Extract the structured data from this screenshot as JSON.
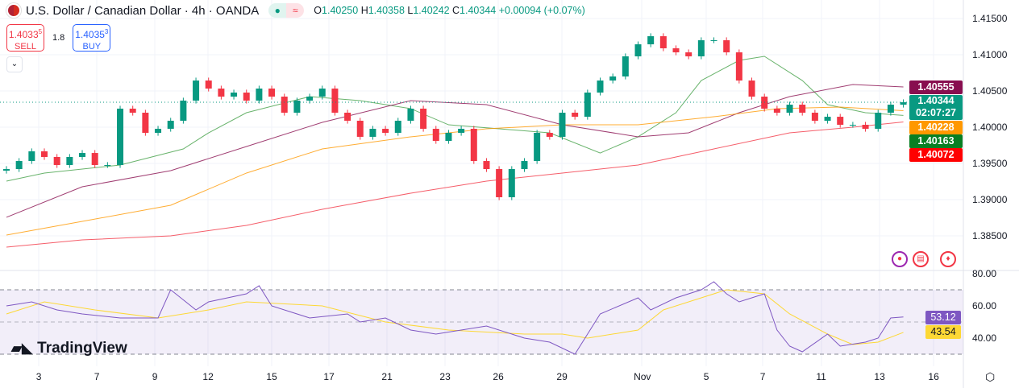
{
  "header": {
    "title": "U.S. Dollar / Canadian Dollar · 4h · OANDA",
    "open_label": "O",
    "open": "1.40250",
    "high_label": "H",
    "high": "1.40358",
    "low_label": "L",
    "low": "1.40242",
    "close_label": "C",
    "close": "1.40344",
    "change": "+0.00094 (+0.07%)",
    "status_icon": "market-open-dot",
    "delay_icon": "approx-icon"
  },
  "trade": {
    "sell_price": "1.4033",
    "sell_sup": "5",
    "sell_label": "SELL",
    "spread": "1.8",
    "buy_price": "1.4035",
    "buy_sup": "3",
    "buy_label": "BUY"
  },
  "branding": {
    "logo": "TradingView"
  },
  "colors": {
    "up": "#089981",
    "down": "#f23645",
    "ma_green": "#43a047",
    "ma_maroon": "#880e4f",
    "ma_orange": "#ff9800",
    "ma_red": "#f23645",
    "rsi": "#7e57c2",
    "rsi_ma": "#fdd835"
  },
  "chart_data": {
    "type": "candlestick",
    "price_axis": {
      "ticks": [
        "1.41500",
        "1.41000",
        "1.40500",
        "1.40000",
        "1.39500",
        "1.39000",
        "1.38500"
      ],
      "range": [
        1.381,
        1.4175
      ]
    },
    "x_ticks": [
      "3",
      "7",
      "9",
      "12",
      "15",
      "17",
      "21",
      "23",
      "26",
      "29",
      "Nov",
      "5",
      "7",
      "11",
      "13",
      "16"
    ],
    "first_open": 1.394,
    "closes": [
      1.39422,
      1.39533,
      1.39667,
      1.39589,
      1.39478,
      1.39589,
      1.39644,
      1.39478,
      1.39478,
      1.40256,
      1.402,
      1.39922,
      1.39978,
      1.40089,
      1.40367,
      1.40644,
      1.40533,
      1.40422,
      1.40478,
      1.40367,
      1.40533,
      1.40422,
      1.402,
      1.40367,
      1.40422,
      1.40533,
      1.402,
      1.40089,
      1.39867,
      1.39978,
      1.39922,
      1.40089,
      1.40256,
      1.39978,
      1.39811,
      1.39922,
      1.39978,
      1.39533,
      1.39422,
      1.39033,
      1.39422,
      1.39533,
      1.39922,
      1.39867,
      1.402,
      1.40144,
      1.40478,
      1.40644,
      1.407,
      1.40978,
      1.41144,
      1.41256,
      1.41089,
      1.41033,
      1.40978,
      1.412,
      1.412,
      1.41033,
      1.40644,
      1.40422,
      1.40256,
      1.402,
      1.40311,
      1.402,
      1.40089,
      1.40144,
      1.40033,
      1.40033,
      1.39978,
      1.402,
      1.40311,
      1.40344
    ],
    "moving_averages": [
      {
        "color": "#43a047",
        "last": "1.40163",
        "points": [
          [
            0,
            1.39256
          ],
          [
            3,
            1.39367
          ],
          [
            9,
            1.39478
          ],
          [
            14,
            1.397
          ],
          [
            16,
            1.39922
          ],
          [
            19,
            1.402
          ],
          [
            24,
            1.40422
          ],
          [
            28,
            1.40367
          ],
          [
            32,
            1.40256
          ],
          [
            35,
            1.40033
          ],
          [
            39,
            1.39978
          ],
          [
            43,
            1.39922
          ],
          [
            47,
            1.39644
          ],
          [
            50,
            1.39867
          ],
          [
            53,
            1.402
          ],
          [
            55,
            1.40644
          ],
          [
            58,
            1.40922
          ],
          [
            60,
            1.40978
          ],
          [
            63,
            1.40644
          ],
          [
            65,
            1.40311
          ],
          [
            68,
            1.402
          ],
          [
            71,
            1.40163
          ]
        ]
      },
      {
        "color": "#880e4f",
        "last": "1.40555",
        "points": [
          [
            0,
            1.38756
          ],
          [
            6,
            1.39178
          ],
          [
            13,
            1.394
          ],
          [
            19,
            1.39733
          ],
          [
            25,
            1.40067
          ],
          [
            32,
            1.40367
          ],
          [
            38,
            1.40311
          ],
          [
            44,
            1.40033
          ],
          [
            50,
            1.39867
          ],
          [
            54,
            1.39922
          ],
          [
            58,
            1.402
          ],
          [
            62,
            1.40422
          ],
          [
            67,
            1.40589
          ],
          [
            71,
            1.40555
          ]
        ]
      },
      {
        "color": "#ff9800",
        "last": "1.40228",
        "points": [
          [
            0,
            1.38511
          ],
          [
            6,
            1.387
          ],
          [
            13,
            1.38922
          ],
          [
            19,
            1.39367
          ],
          [
            25,
            1.397
          ],
          [
            32,
            1.39867
          ],
          [
            38,
            1.39978
          ],
          [
            44,
            1.40033
          ],
          [
            50,
            1.40033
          ],
          [
            56,
            1.40144
          ],
          [
            61,
            1.40256
          ],
          [
            66,
            1.40278
          ],
          [
            71,
            1.40228
          ]
        ]
      },
      {
        "color": "#f23645",
        "last": "1.40072",
        "points": [
          [
            0,
            1.38344
          ],
          [
            6,
            1.38444
          ],
          [
            13,
            1.385
          ],
          [
            19,
            1.38644
          ],
          [
            25,
            1.38867
          ],
          [
            32,
            1.39089
          ],
          [
            38,
            1.39256
          ],
          [
            44,
            1.39367
          ],
          [
            50,
            1.39478
          ],
          [
            56,
            1.397
          ],
          [
            62,
            1.39922
          ],
          [
            67,
            1.4
          ],
          [
            71,
            1.40072
          ]
        ]
      }
    ],
    "last_price": {
      "value": "1.40344",
      "countdown": "02:07:27"
    },
    "rsi": {
      "ticks": [
        "80.00",
        "60.00",
        "40.00"
      ],
      "bands": [
        70,
        50,
        30
      ],
      "last": "53.12",
      "ma_last": "43.54",
      "values": [
        [
          0,
          60
        ],
        [
          2,
          62.5
        ],
        [
          4,
          57.5
        ],
        [
          6,
          55
        ],
        [
          9,
          52.5
        ],
        [
          12,
          52.5
        ],
        [
          13,
          70
        ],
        [
          15,
          57.5
        ],
        [
          16,
          62.5
        ],
        [
          19,
          67.5
        ],
        [
          20,
          72.5
        ],
        [
          21,
          60
        ],
        [
          24,
          52.5
        ],
        [
          27,
          55
        ],
        [
          28,
          50
        ],
        [
          30,
          52.5
        ],
        [
          32,
          45
        ],
        [
          34,
          42.5
        ],
        [
          38,
          47.5
        ],
        [
          41,
          40
        ],
        [
          43,
          37.5
        ],
        [
          45,
          30
        ],
        [
          47,
          55
        ],
        [
          50,
          65
        ],
        [
          51,
          57.5
        ],
        [
          53,
          65
        ],
        [
          55,
          70
        ],
        [
          56,
          75
        ],
        [
          57,
          67.5
        ],
        [
          58,
          62.5
        ],
        [
          60,
          67.5
        ],
        [
          61,
          45
        ],
        [
          62,
          35
        ],
        [
          63,
          31.5
        ],
        [
          65,
          42.5
        ],
        [
          66,
          35
        ],
        [
          68,
          37.5
        ],
        [
          69,
          40
        ],
        [
          70,
          52.5
        ],
        [
          71,
          53.12
        ]
      ],
      "ma": [
        [
          0,
          55
        ],
        [
          3,
          62.5
        ],
        [
          7,
          57.5
        ],
        [
          12,
          52.5
        ],
        [
          16,
          57.5
        ],
        [
          19,
          62.5
        ],
        [
          25,
          60
        ],
        [
          30,
          50
        ],
        [
          35,
          45
        ],
        [
          41,
          42.5
        ],
        [
          44,
          42.5
        ],
        [
          46,
          40
        ],
        [
          50,
          45
        ],
        [
          52,
          57.5
        ],
        [
          55,
          65
        ],
        [
          57,
          70
        ],
        [
          60,
          67.5
        ],
        [
          62,
          55
        ],
        [
          65,
          42.5
        ],
        [
          67,
          36
        ],
        [
          69,
          37.5
        ],
        [
          71,
          43.54
        ]
      ]
    }
  }
}
